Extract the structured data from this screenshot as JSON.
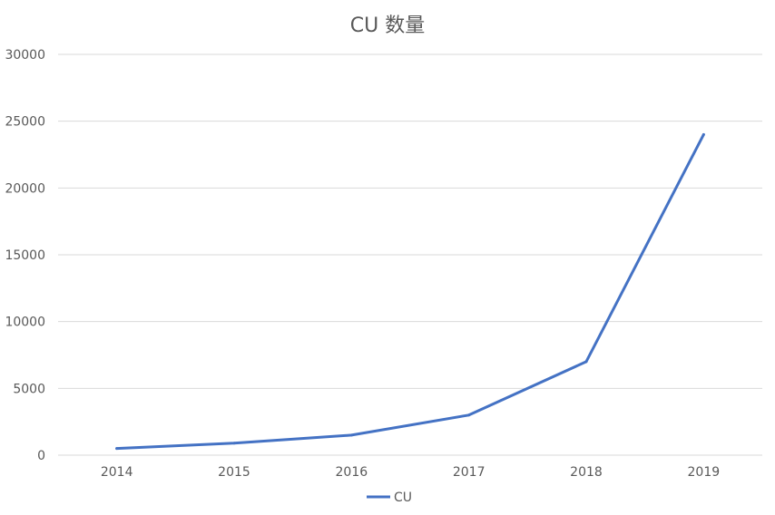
{
  "chart_data": {
    "type": "line",
    "title": "CU 数量",
    "categories": [
      "2014",
      "2015",
      "2016",
      "2017",
      "2018",
      "2019"
    ],
    "series": [
      {
        "name": "CU",
        "color": "#4472C4",
        "values": [
          500,
          900,
          1500,
          3000,
          7000,
          24000
        ]
      }
    ],
    "ylim": [
      0,
      30000
    ],
    "yticks": [
      "0",
      "5000",
      "10000",
      "15000",
      "20000",
      "25000",
      "30000"
    ],
    "grid": true,
    "legend_position": "bottom"
  }
}
